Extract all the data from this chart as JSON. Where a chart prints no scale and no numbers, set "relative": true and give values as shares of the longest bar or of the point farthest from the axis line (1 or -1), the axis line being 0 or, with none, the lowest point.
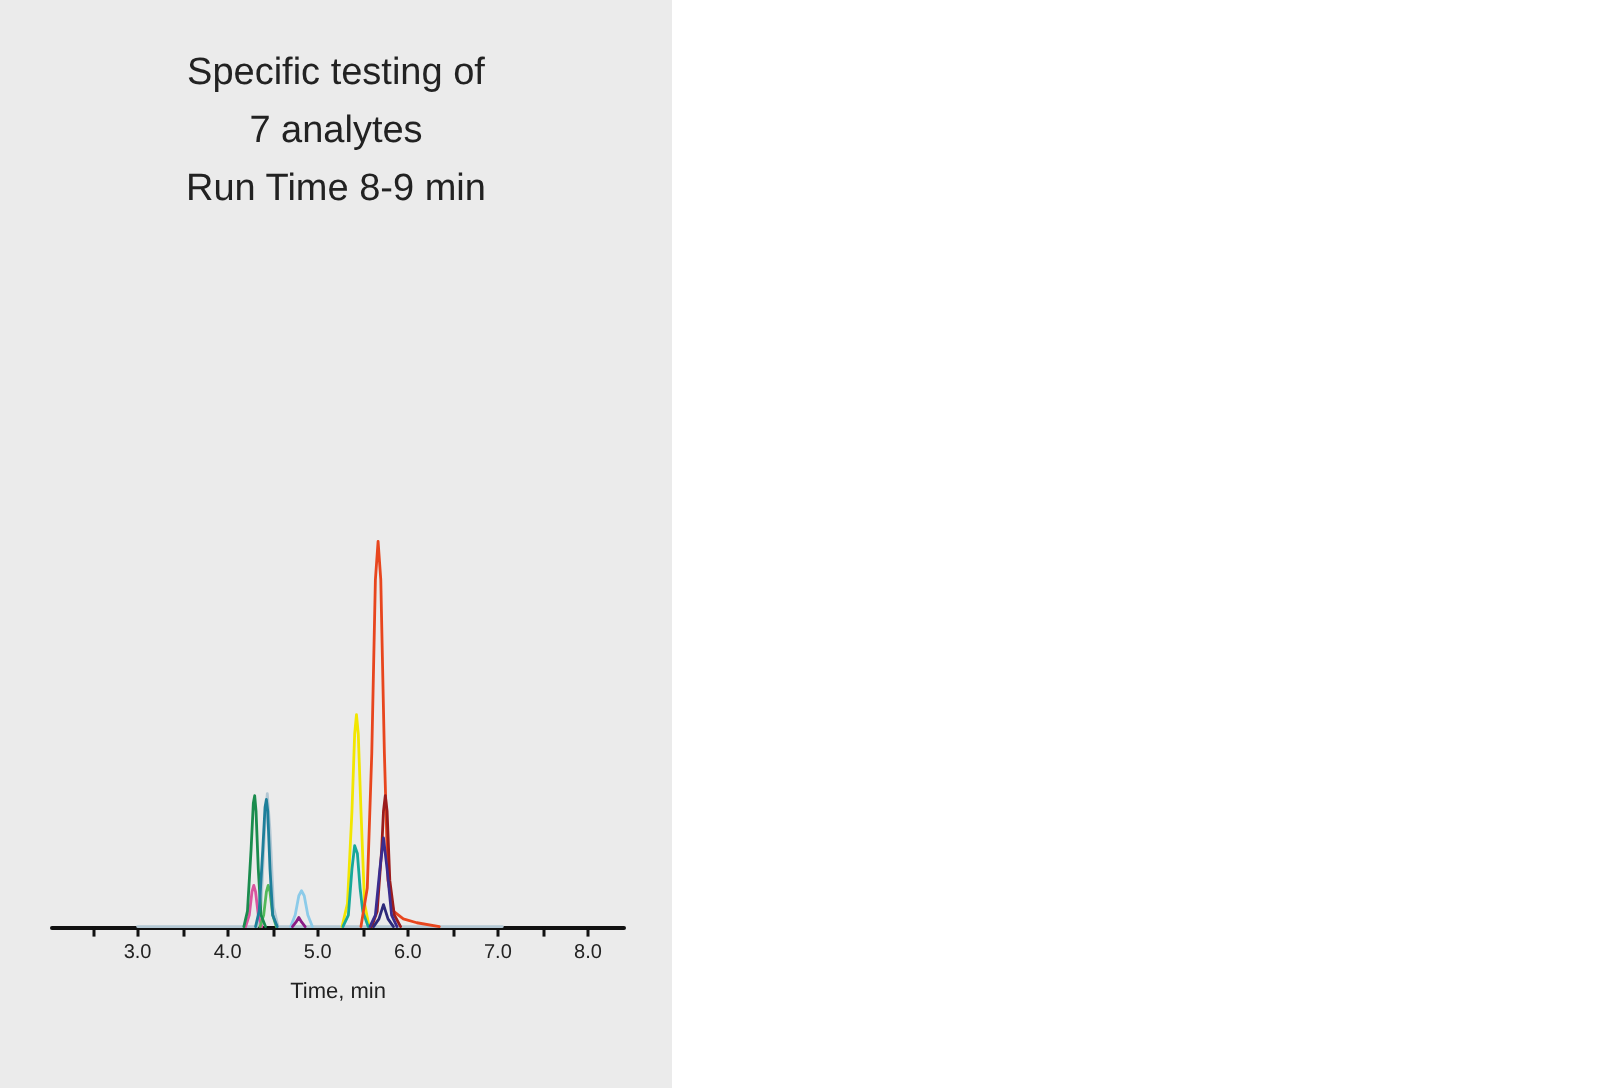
{
  "chart_data": {
    "type": "line",
    "title": "Specific testing of 7 analytes",
    "subtitle": "Run Time 8-9 min",
    "xlabel": "Time, min",
    "relative": true,
    "marker": "none",
    "xlim": [
      2.05,
      8.4
    ],
    "xticks": [
      {
        "value": 2.5,
        "label": null
      },
      {
        "value": 3,
        "label": "3.0"
      },
      {
        "value": 3.5,
        "label": null
      },
      {
        "value": 4,
        "label": "4.0"
      },
      {
        "value": 4.5,
        "label": null
      },
      {
        "value": 5,
        "label": "5.0"
      },
      {
        "value": 5.5,
        "label": null
      },
      {
        "value": 6,
        "label": "6.0"
      },
      {
        "value": 6.5,
        "label": null
      },
      {
        "value": 7,
        "label": "7.0"
      },
      {
        "value": 7.5,
        "label": null
      },
      {
        "value": 8,
        "label": "8.0"
      }
    ],
    "series": [
      {
        "color": "#b3c7d3",
        "x": [
          3.0,
          4.33,
          4.37,
          4.41,
          4.44,
          4.47,
          4.51,
          4.56,
          7.05
        ],
        "values": [
          0,
          0,
          0.05,
          0.25,
          0.345,
          0.25,
          0.05,
          0,
          0
        ]
      },
      {
        "color": "#8ccbe9",
        "x": [
          4.7,
          4.75,
          4.79,
          4.82,
          4.85,
          4.89,
          4.94
        ],
        "values": [
          0,
          0.03,
          0.08,
          0.093,
          0.08,
          0.03,
          0
        ]
      },
      {
        "color": "#8b1c85",
        "x": [
          4.72,
          4.76,
          4.79,
          4.82,
          4.86
        ],
        "values": [
          0,
          0.012,
          0.024,
          0.012,
          0
        ]
      },
      {
        "color": "#d9559f",
        "x": [
          4.2,
          4.24,
          4.27,
          4.29,
          4.31,
          4.34,
          4.38
        ],
        "values": [
          0,
          0.03,
          0.09,
          0.107,
          0.09,
          0.03,
          0
        ]
      },
      {
        "color": "#52b85a",
        "x": [
          4.36,
          4.4,
          4.43,
          4.45,
          4.47,
          4.5,
          4.54
        ],
        "values": [
          0,
          0.03,
          0.09,
          0.107,
          0.09,
          0.03,
          0
        ]
      },
      {
        "color": "#1a8c4e",
        "x": [
          4.18,
          4.22,
          4.26,
          4.285,
          4.3,
          4.315,
          4.34,
          4.37,
          4.42
        ],
        "values": [
          0,
          0.04,
          0.2,
          0.32,
          0.34,
          0.3,
          0.15,
          0.03,
          0
        ]
      },
      {
        "color": "#1d7f9a",
        "x": [
          4.31,
          4.35,
          4.39,
          4.415,
          4.43,
          4.445,
          4.47,
          4.5,
          4.55
        ],
        "values": [
          0,
          0.04,
          0.2,
          0.31,
          0.33,
          0.3,
          0.15,
          0.03,
          0
        ]
      },
      {
        "color": "#f2e600",
        "x": [
          5.27,
          5.33,
          5.38,
          5.41,
          5.43,
          5.45,
          5.48,
          5.52,
          5.57
        ],
        "values": [
          0,
          0.06,
          0.3,
          0.5,
          0.55,
          0.5,
          0.3,
          0.06,
          0
        ]
      },
      {
        "color": "#17a89a",
        "x": [
          5.28,
          5.34,
          5.38,
          5.41,
          5.44,
          5.47,
          5.5,
          5.56
        ],
        "values": [
          0,
          0.03,
          0.15,
          0.21,
          0.19,
          0.1,
          0.04,
          0
        ]
      },
      {
        "color": "#e8461e",
        "x": [
          5.48,
          5.55,
          5.6,
          5.64,
          5.67,
          5.7,
          5.74,
          5.78,
          5.84,
          5.95,
          6.1,
          6.35
        ],
        "values": [
          0,
          0.1,
          0.45,
          0.9,
          1,
          0.9,
          0.45,
          0.12,
          0.04,
          0.02,
          0.01,
          0
        ]
      },
      {
        "color": "#9c1c1c",
        "x": [
          5.6,
          5.66,
          5.71,
          5.73,
          5.75,
          5.77,
          5.8,
          5.85,
          5.92
        ],
        "values": [
          0,
          0.04,
          0.2,
          0.3,
          0.34,
          0.3,
          0.12,
          0.03,
          0
        ]
      },
      {
        "color": "#3b2d8f",
        "x": [
          5.58,
          5.64,
          5.69,
          5.73,
          5.77,
          5.82,
          5.88
        ],
        "values": [
          0,
          0.03,
          0.15,
          0.23,
          0.15,
          0.03,
          0
        ]
      },
      {
        "color": "#2d2a7a",
        "x": [
          5.62,
          5.68,
          5.73,
          5.78,
          5.84
        ],
        "values": [
          0,
          0.02,
          0.057,
          0.02,
          0
        ]
      }
    ]
  }
}
